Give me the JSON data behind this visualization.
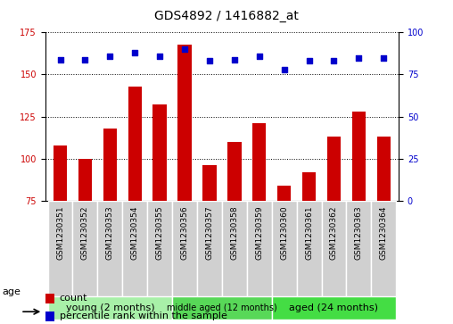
{
  "title": "GDS4892 / 1416882_at",
  "samples": [
    "GSM1230351",
    "GSM1230352",
    "GSM1230353",
    "GSM1230354",
    "GSM1230355",
    "GSM1230356",
    "GSM1230357",
    "GSM1230358",
    "GSM1230359",
    "GSM1230360",
    "GSM1230361",
    "GSM1230362",
    "GSM1230363",
    "GSM1230364"
  ],
  "counts": [
    108,
    100,
    118,
    143,
    132,
    168,
    96,
    110,
    121,
    84,
    92,
    113,
    128,
    113
  ],
  "percentiles": [
    84,
    84,
    86,
    88,
    86,
    90,
    83,
    84,
    86,
    78,
    83,
    83,
    85,
    85
  ],
  "ylim_left": [
    75,
    175
  ],
  "ylim_right": [
    0,
    100
  ],
  "yticks_left": [
    75,
    100,
    125,
    150,
    175
  ],
  "yticks_right": [
    0,
    25,
    50,
    75,
    100
  ],
  "bar_color": "#cc0000",
  "dot_color": "#0000cc",
  "groups": [
    {
      "label": "young (2 months)",
      "start": 0,
      "end": 5,
      "color": "#a8f0a8"
    },
    {
      "label": "middle aged (12 months)",
      "start": 5,
      "end": 9,
      "color": "#58d858"
    },
    {
      "label": "aged (24 months)",
      "start": 9,
      "end": 14,
      "color": "#44dd44"
    }
  ],
  "age_label": "age",
  "legend_count": "count",
  "legend_percentile": "percentile rank within the sample",
  "title_fontsize": 10,
  "tick_fontsize": 7,
  "xlabel_fontsize": 6.5,
  "group_fontsize_large": 8,
  "group_fontsize_small": 7,
  "legend_fontsize": 8,
  "bar_width": 0.55,
  "cell_color": "#d0d0d0",
  "cell_edge": "#ffffff"
}
